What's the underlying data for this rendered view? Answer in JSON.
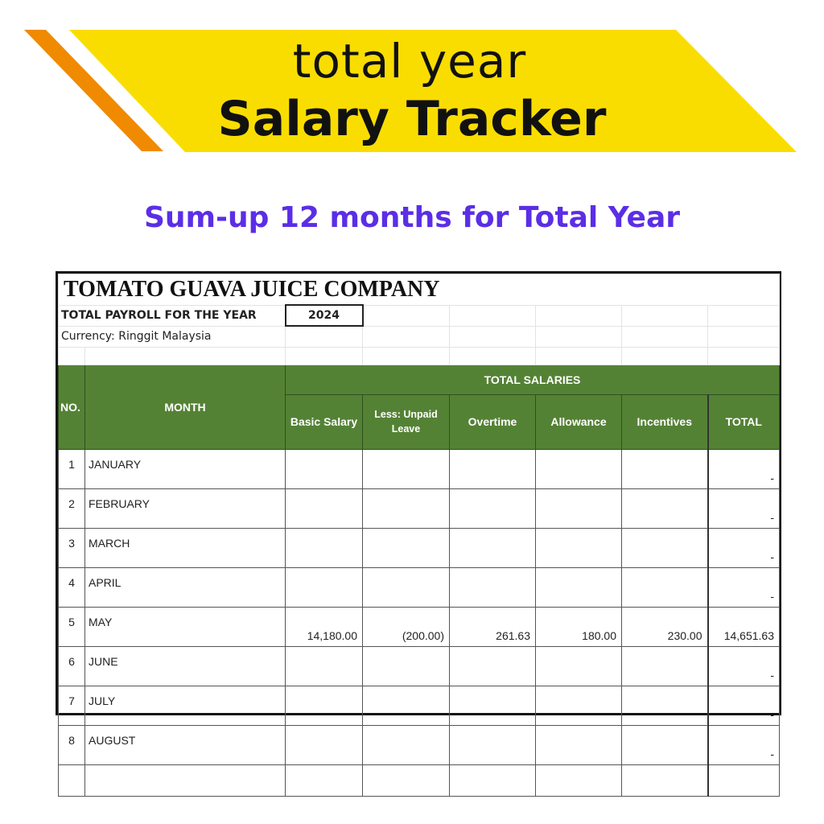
{
  "banner": {
    "line1": "total year",
    "line2": "Salary Tracker",
    "colors": {
      "yellow": "#fadd00",
      "orange": "#f08a00"
    }
  },
  "subtitle": "Sum-up 12 months for Total Year",
  "sheet": {
    "company": "TOMATO GUAVA JUICE COMPANY",
    "payroll_label": "TOTAL PAYROLL FOR THE YEAR",
    "year": "2024",
    "currency": "Currency: Ringgit Malaysia",
    "header_color": "#548235",
    "headers": {
      "no": "NO.",
      "month": "MONTH",
      "group": "TOTAL SALARIES",
      "basic": "Basic Salary",
      "unpaid": "Less: Unpaid Leave",
      "overtime": "Overtime",
      "allowance": "Allowance",
      "incentives": "Incentives",
      "total": "TOTAL"
    },
    "rows": [
      {
        "no": "1",
        "month": "JANUARY",
        "basic": "",
        "unpaid": "",
        "overtime": "",
        "allowance": "",
        "incentives": "",
        "total": "-"
      },
      {
        "no": "2",
        "month": "FEBRUARY",
        "basic": "",
        "unpaid": "",
        "overtime": "",
        "allowance": "",
        "incentives": "",
        "total": "-"
      },
      {
        "no": "3",
        "month": "MARCH",
        "basic": "",
        "unpaid": "",
        "overtime": "",
        "allowance": "",
        "incentives": "",
        "total": "-"
      },
      {
        "no": "4",
        "month": "APRIL",
        "basic": "",
        "unpaid": "",
        "overtime": "",
        "allowance": "",
        "incentives": "",
        "total": "-"
      },
      {
        "no": "5",
        "month": "MAY",
        "basic": "14,180.00",
        "unpaid": "(200.00)",
        "overtime": "261.63",
        "allowance": "180.00",
        "incentives": "230.00",
        "total": "14,651.63"
      },
      {
        "no": "6",
        "month": "JUNE",
        "basic": "",
        "unpaid": "",
        "overtime": "",
        "allowance": "",
        "incentives": "",
        "total": "-"
      },
      {
        "no": "7",
        "month": "JULY",
        "basic": "",
        "unpaid": "",
        "overtime": "",
        "allowance": "",
        "incentives": "",
        "total": "-"
      },
      {
        "no": "8",
        "month": "AUGUST",
        "basic": "",
        "unpaid": "",
        "overtime": "",
        "allowance": "",
        "incentives": "",
        "total": "-"
      }
    ]
  }
}
